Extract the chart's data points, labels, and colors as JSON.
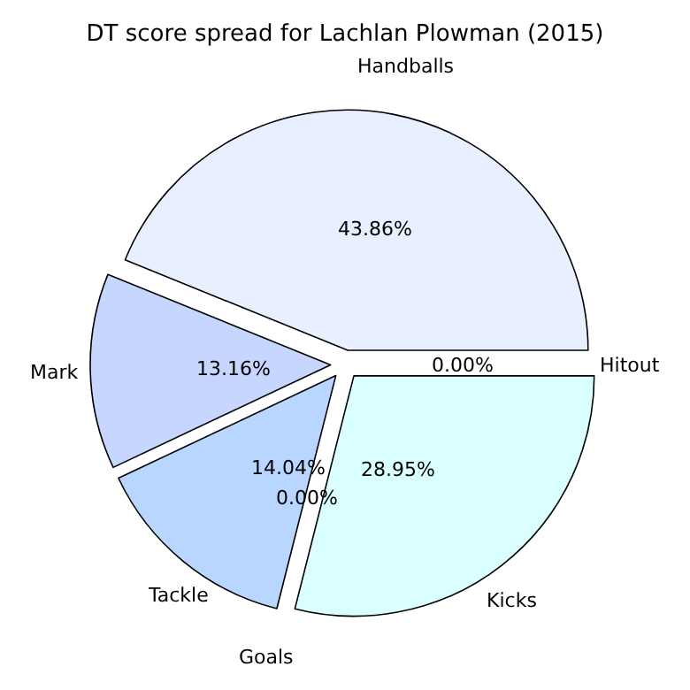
{
  "chart_data": {
    "type": "pie",
    "title": "DT score spread for Lachlan Plowman (2015)",
    "categories": [
      "Handballs",
      "Mark",
      "Tackle",
      "Goals",
      "Kicks",
      "Hitout"
    ],
    "values": [
      43.86,
      13.16,
      14.04,
      0.0,
      28.95,
      0.0
    ],
    "colors": [
      "#e8efff",
      "#c6d6ff",
      "#b8d6ff",
      "#cce0ff",
      "#d9ffff",
      "#e0f0ff"
    ],
    "value_labels": [
      "43.86%",
      "13.16%",
      "14.04%",
      "0.00%",
      "28.95%",
      "0.00%"
    ]
  }
}
